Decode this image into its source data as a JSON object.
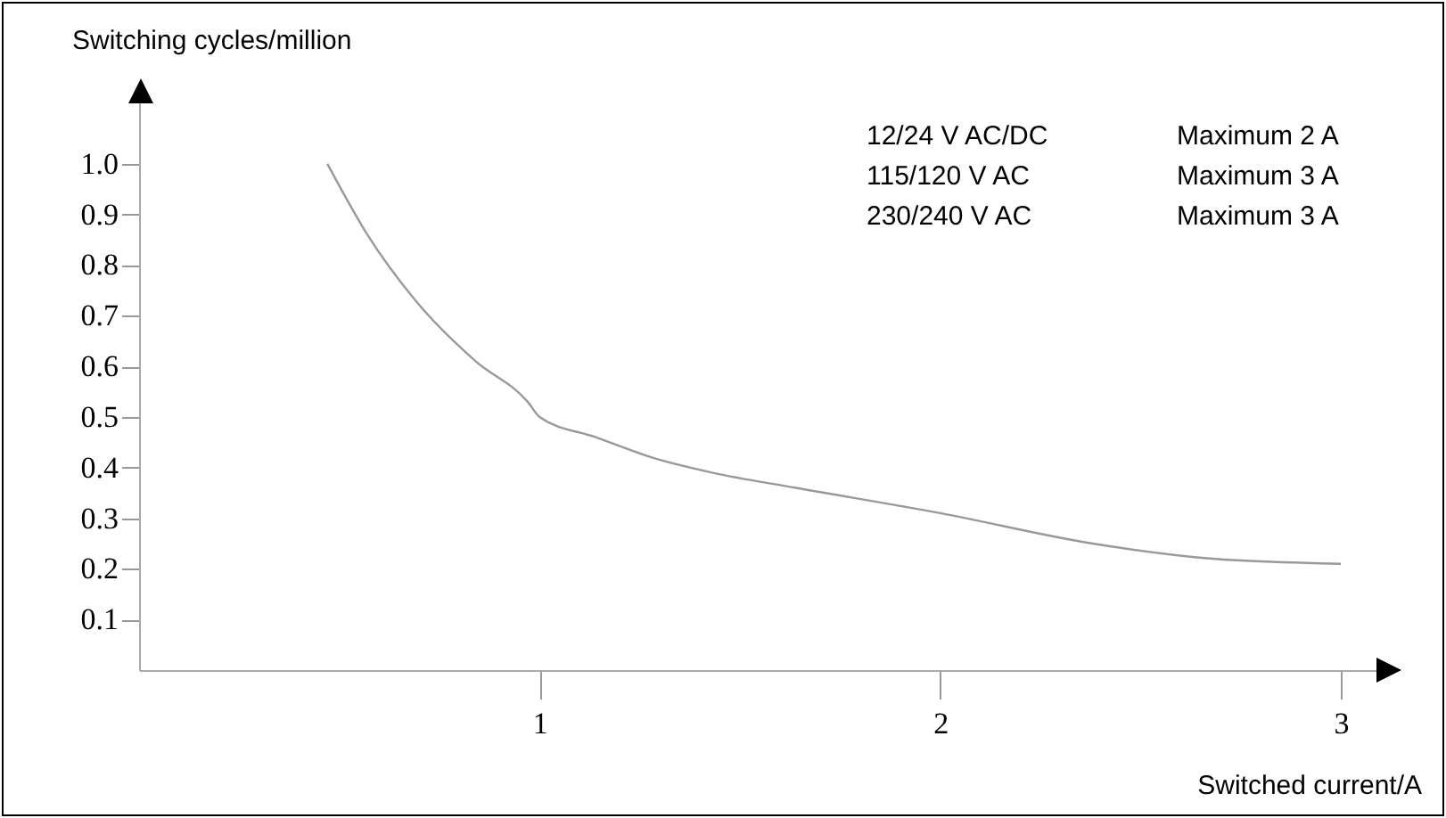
{
  "chart_data": {
    "type": "line",
    "xlabel": "Switched current/A",
    "ylabel": "Switching cycles/million",
    "annotations": [
      "12/24 V AC/DC",
      "Maximum 2 A",
      "115/120 V AC",
      "Maximum 3 A",
      "230/240 V AC",
      "Maximum 3 A"
    ],
    "series": [
      {
        "color": "#999999",
        "x": [
          0.47,
          0.57,
          0.69,
          0.84,
          0.97,
          1.0,
          1.14,
          1.28,
          1.43,
          1.64,
          2.0,
          2.38,
          2.68,
          3.0
        ],
        "values": [
          1.0,
          0.86,
          0.73,
          0.61,
          0.53,
          0.5,
          0.46,
          0.42,
          0.39,
          0.36,
          0.31,
          0.25,
          0.22,
          0.21
        ]
      }
    ],
    "xlim": [
      0,
      3.12
    ],
    "xticks": [
      1,
      2,
      3
    ],
    "ylim": [
      0,
      1.13
    ],
    "yticks": [
      0.1,
      0.2,
      0.3,
      0.4,
      0.5,
      0.6,
      0.7,
      0.8,
      0.9,
      {
        "value": 1.0,
        "label": "1.0"
      }
    ],
    "marker": "none",
    "line_style": "solid"
  }
}
